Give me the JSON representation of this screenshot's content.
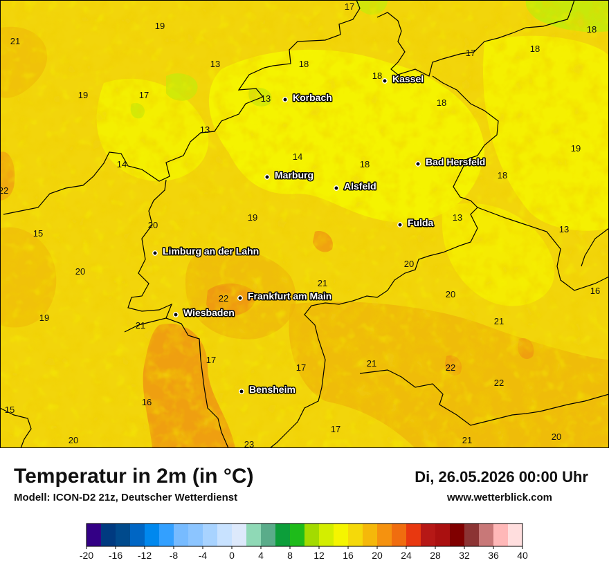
{
  "header": {
    "title": "Temperatur in 2m (in °C)",
    "model": "Modell: ICON-D2 21z, Deutscher Wetterdienst",
    "datetime": "Di, 26.05.2026 00:00 Uhr",
    "website": "www.wetterblick.com"
  },
  "cities": [
    {
      "name": "Kassel"
    },
    {
      "name": "Korbach"
    },
    {
      "name": "Bad Hersfeld"
    },
    {
      "name": "Marburg"
    },
    {
      "name": "Alsfeld"
    },
    {
      "name": "Fulda"
    },
    {
      "name": "Limburg an der Lahn"
    },
    {
      "name": "Frankfurt am Main"
    },
    {
      "name": "Wiesbaden"
    },
    {
      "name": "Bensheim"
    }
  ],
  "temperature_values": [
    17,
    21,
    19,
    18,
    13,
    18,
    17,
    18,
    18,
    19,
    17,
    13,
    13,
    18,
    14,
    14,
    18,
    18,
    19,
    22,
    20,
    19,
    15,
    13,
    13,
    20,
    20,
    21,
    22,
    21,
    20,
    16,
    19,
    21,
    17,
    17,
    21,
    22,
    22,
    16,
    17,
    15,
    20,
    23,
    20,
    21,
    20
  ],
  "legend": {
    "colors": [
      "#330085",
      "#003a80",
      "#004a8c",
      "#0066c4",
      "#0088ee",
      "#33a0ff",
      "#77bbff",
      "#8cc5ff",
      "#a8d3ff",
      "#c8e2ff",
      "#dde9fb",
      "#8fd9b6",
      "#5aac8a",
      "#0c9e3a",
      "#1ebb1a",
      "#a3db00",
      "#d3ee00",
      "#f5f500",
      "#f5d90a",
      "#f5b80a",
      "#f5920f",
      "#f06d0f",
      "#e83810",
      "#b61816",
      "#aa1010",
      "#800000",
      "#8c3434",
      "#c87878",
      "#ffb8b8",
      "#ffdede"
    ],
    "ticks": [
      "-20",
      "-16",
      "-12",
      "-8",
      "-4",
      "0",
      "4",
      "8",
      "12",
      "16",
      "20",
      "24",
      "28",
      "32",
      "36",
      "40"
    ]
  }
}
